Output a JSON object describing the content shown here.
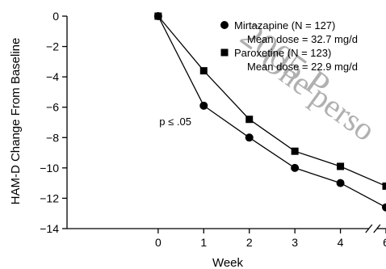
{
  "chart_data": {
    "type": "line",
    "xlabel": "Week",
    "ylabel": "HAM-D Change From Baseline",
    "xlim": [
      -2,
      5
    ],
    "ylim": [
      -14,
      0
    ],
    "x_ticks": [
      {
        "value": 0,
        "label": "0"
      },
      {
        "value": 1,
        "label": "1"
      },
      {
        "value": 2,
        "label": "2"
      },
      {
        "value": 3,
        "label": "3"
      },
      {
        "value": 4,
        "label": "4"
      },
      {
        "value": 5,
        "label": "6"
      }
    ],
    "y_ticks": [
      0,
      -2,
      -4,
      -6,
      -8,
      -10,
      -12,
      -14
    ],
    "y_tick_labels": [
      "0",
      "−2",
      "−4",
      "−6",
      "−8",
      "−10",
      "−12",
      "−14"
    ],
    "axis_break_between": [
      4,
      5
    ],
    "series": [
      {
        "name": "Mirtazapine (N = 127)",
        "subtext": "Mean dose = 32.7 mg/d",
        "marker": "circle",
        "color": "#000000",
        "x": [
          0,
          1,
          2,
          3,
          4,
          5
        ],
        "y": [
          0,
          -5.9,
          -8.0,
          -10.0,
          -11.0,
          -12.6
        ]
      },
      {
        "name": "Paroxetine (N = 123)",
        "subtext": "Mean dose = 22.9 mg/d",
        "marker": "square",
        "color": "#000000",
        "x": [
          0,
          1,
          2,
          3,
          4,
          5
        ],
        "y": [
          0,
          -3.6,
          -6.8,
          -8.9,
          -9.9,
          -11.2
        ]
      }
    ],
    "annotations": [
      {
        "text": "p ≤ .05",
        "x": 1,
        "y": -5.9
      }
    ],
    "legend_position": "top-right",
    "grid": false
  },
  "watermark": {
    "text_primary": "2005 P",
    "text_secondary": "One perso",
    "color": "#b0b0b0"
  }
}
